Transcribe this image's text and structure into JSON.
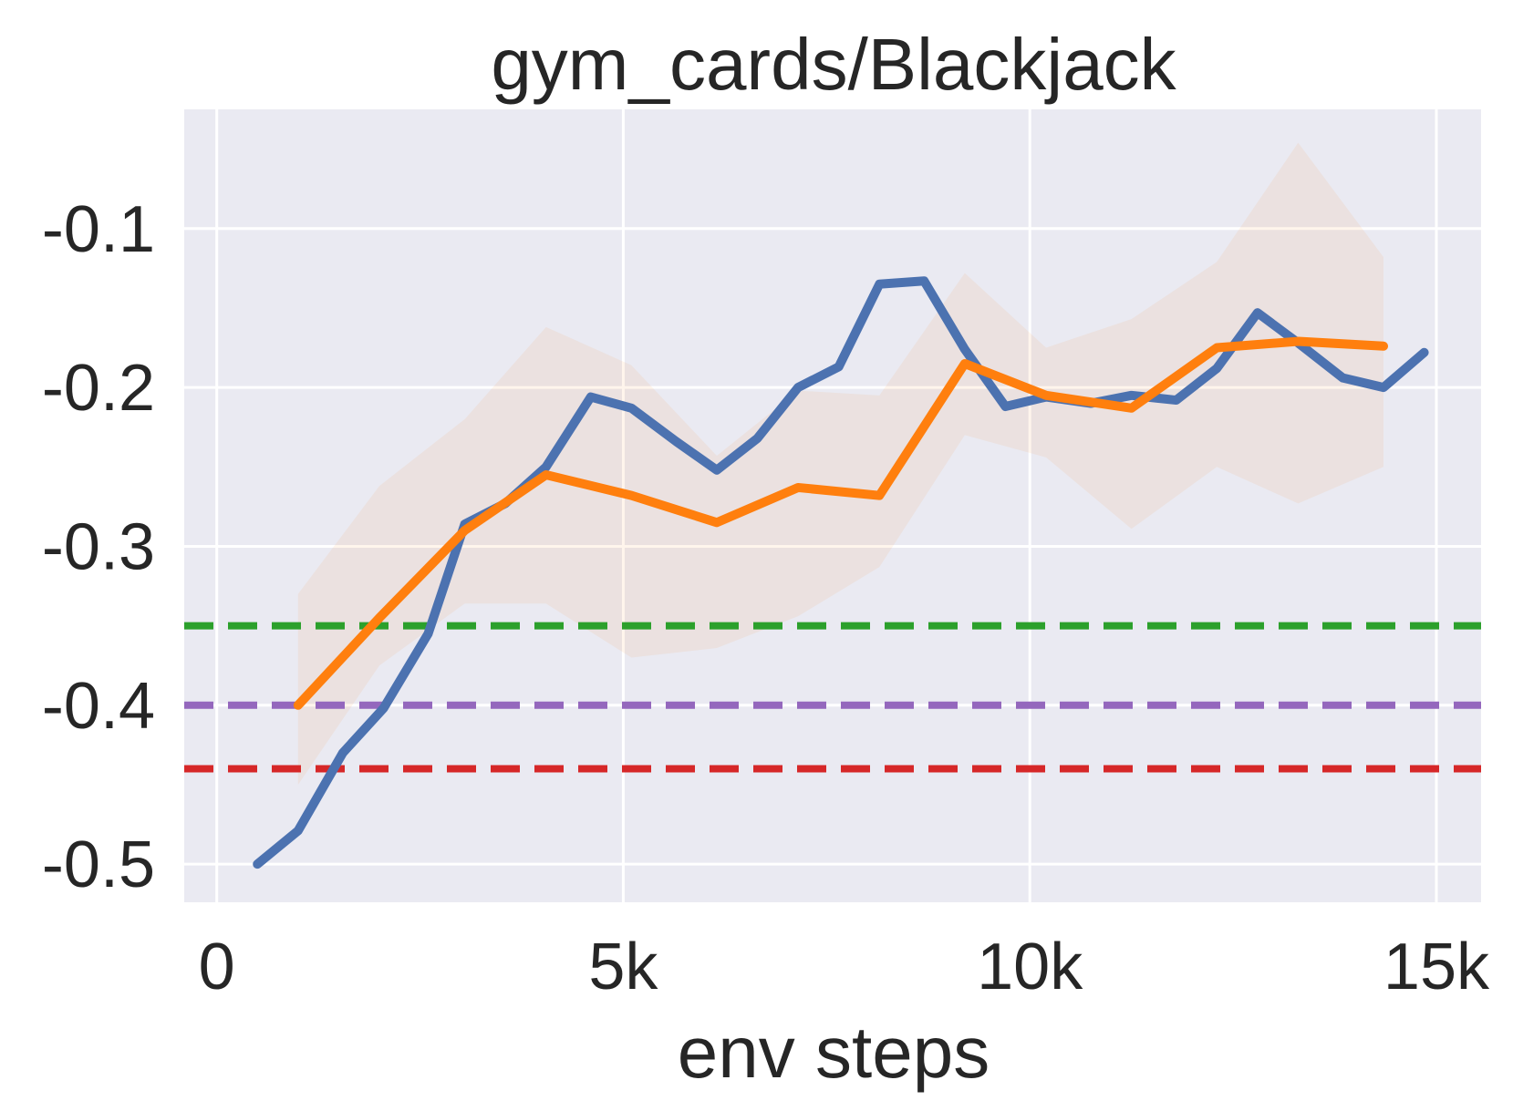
{
  "chart_data": {
    "type": "line",
    "title": "gym_cards/Blackjack",
    "xlabel": "env steps",
    "ylabel": "",
    "xlim": [
      -400,
      15550
    ],
    "ylim": [
      -0.524,
      -0.025
    ],
    "grid": true,
    "x_ticks": [
      {
        "value": 0,
        "label": "0"
      },
      {
        "value": 5000,
        "label": "5k"
      },
      {
        "value": 10000,
        "label": "10k"
      },
      {
        "value": 15000,
        "label": "15k"
      }
    ],
    "y_ticks": [
      {
        "value": -0.1,
        "label": "-0.1"
      },
      {
        "value": -0.2,
        "label": "-0.2"
      },
      {
        "value": -0.3,
        "label": "-0.3"
      },
      {
        "value": -0.4,
        "label": "-0.4"
      },
      {
        "value": -0.5,
        "label": "-0.5"
      }
    ],
    "series": [
      {
        "color": "#4c72b0",
        "x": [
          500,
          1000,
          1550,
          2050,
          2600,
          3050,
          3550,
          4050,
          4600,
          5100,
          5650,
          6150,
          6650,
          7150,
          7650,
          8150,
          8700,
          9200,
          9700,
          10200,
          10750,
          11250,
          11800,
          12300,
          12800,
          13300,
          13850,
          14350,
          14850
        ],
        "y": [
          -0.5,
          -0.479,
          -0.43,
          -0.402,
          -0.355,
          -0.286,
          -0.273,
          -0.25,
          -0.206,
          -0.213,
          -0.234,
          -0.252,
          -0.232,
          -0.2,
          -0.187,
          -0.135,
          -0.133,
          -0.176,
          -0.212,
          -0.206,
          -0.21,
          -0.205,
          -0.208,
          -0.188,
          -0.153,
          -0.172,
          -0.194,
          -0.2,
          -0.178
        ]
      },
      {
        "color": "#ff7f0e",
        "x": [
          1000,
          2000,
          3050,
          4050,
          5100,
          6150,
          7150,
          8150,
          9200,
          10200,
          11250,
          12300,
          13300,
          14350
        ],
        "y": [
          -0.4,
          -0.345,
          -0.29,
          -0.255,
          -0.268,
          -0.285,
          -0.263,
          -0.268,
          -0.185,
          -0.205,
          -0.213,
          -0.175,
          -0.171,
          -0.174
        ],
        "band_upper": [
          -0.33,
          -0.262,
          -0.22,
          -0.162,
          -0.186,
          -0.243,
          -0.202,
          -0.205,
          -0.128,
          -0.175,
          -0.157,
          -0.121,
          -0.046,
          -0.118
        ],
        "band_lower": [
          -0.45,
          -0.375,
          -0.336,
          -0.336,
          -0.37,
          -0.364,
          -0.344,
          -0.313,
          -0.23,
          -0.244,
          -0.289,
          -0.25,
          -0.273,
          -0.25
        ],
        "band_color": "#ff7f0e"
      }
    ],
    "reference_lines": [
      {
        "color": "#2ca02c",
        "y": -0.35,
        "style": "dashed"
      },
      {
        "color": "#9467bd",
        "y": -0.4,
        "style": "dashed"
      },
      {
        "color": "#d62728",
        "y": -0.44,
        "style": "dashed"
      }
    ]
  }
}
